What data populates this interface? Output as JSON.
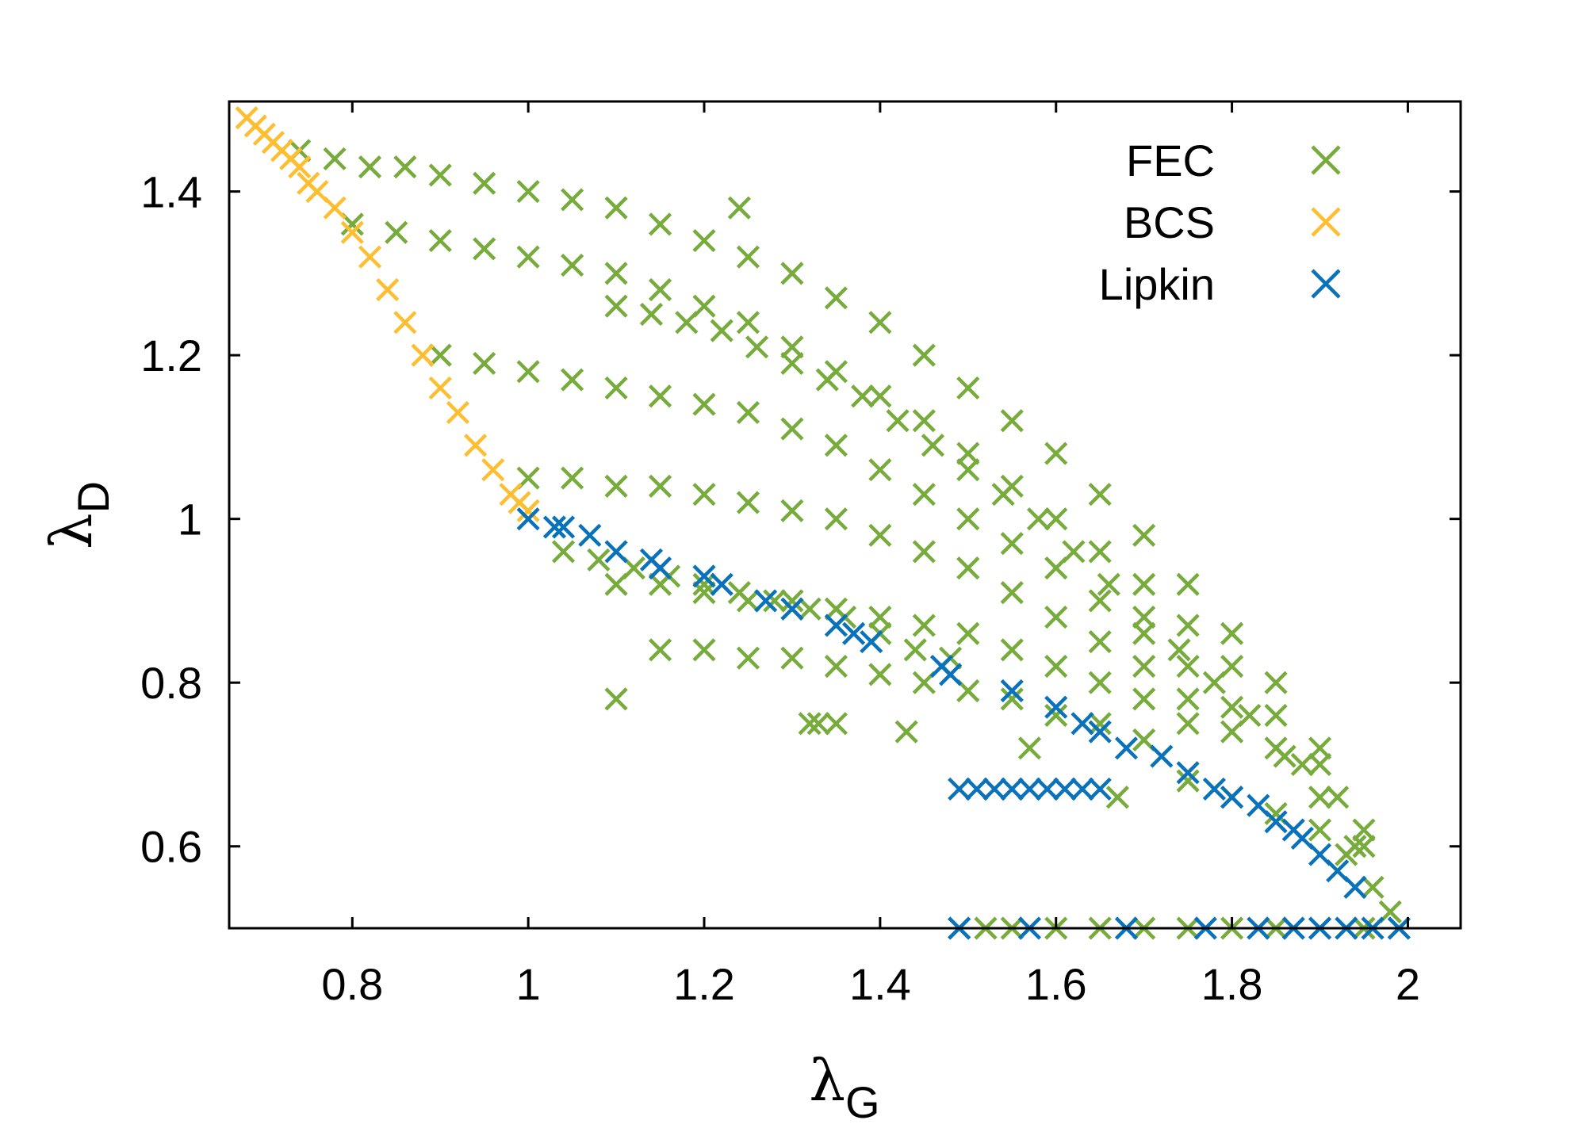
{
  "chart_data": {
    "type": "scatter",
    "title": "",
    "xlabel": {
      "symbol": "λ",
      "subscript": "G"
    },
    "ylabel": {
      "symbol": "λ",
      "subscript": "D"
    },
    "xlim": [
      0.66,
      2.06
    ],
    "ylim": [
      0.5,
      1.51
    ],
    "xticks": [
      0.8,
      1,
      1.2,
      1.4,
      1.6,
      1.8,
      2
    ],
    "xtick_labels": [
      "0.8",
      "1",
      "1.2",
      "1.4",
      "1.6",
      "1.8",
      "2"
    ],
    "yticks": [
      0.6,
      0.8,
      1,
      1.2,
      1.4
    ],
    "ytick_labels": [
      "0.6",
      "0.8",
      "1",
      "1.2",
      "1.4"
    ],
    "grid": false,
    "legend_position": "top-right",
    "marker": "x",
    "series": [
      {
        "name": "FEC",
        "color": "#77ac3c",
        "x": [
          0.74,
          0.78,
          0.82,
          0.86,
          0.9,
          0.95,
          1.0,
          1.05,
          1.1,
          1.15,
          1.2,
          1.25,
          1.3,
          1.35,
          1.4,
          1.45,
          1.5,
          1.55,
          1.6,
          1.65,
          1.7,
          1.75,
          1.8,
          1.85,
          1.9,
          1.95,
          0.8,
          0.85,
          0.9,
          0.95,
          1.0,
          1.05,
          1.1,
          1.15,
          1.2,
          1.25,
          1.3,
          1.35,
          1.4,
          1.45,
          1.5,
          1.55,
          1.6,
          1.65,
          1.7,
          1.75,
          1.8,
          1.85,
          1.9,
          0.9,
          0.95,
          1.0,
          1.05,
          1.1,
          1.15,
          1.2,
          1.25,
          1.3,
          1.35,
          1.4,
          1.45,
          1.5,
          1.55,
          1.6,
          1.65,
          1.7,
          1.75,
          1.8,
          1.85,
          1.0,
          1.05,
          1.1,
          1.15,
          1.2,
          1.25,
          1.3,
          1.35,
          1.4,
          1.45,
          1.5,
          1.55,
          1.6,
          1.65,
          1.7,
          1.75,
          1.8,
          1.1,
          1.15,
          1.2,
          1.25,
          1.3,
          1.35,
          1.4,
          1.45,
          1.5,
          1.55,
          1.6,
          1.65,
          1.7,
          1.75,
          1.15,
          1.2,
          1.25,
          1.3,
          1.35,
          1.4,
          1.45,
          1.5,
          1.55,
          1.6,
          1.65,
          1.7,
          1.04,
          1.08,
          1.12,
          1.16,
          1.2,
          1.24,
          1.28,
          1.32,
          1.36,
          1.4,
          1.44,
          1.48,
          1.1,
          1.14,
          1.18,
          1.22,
          1.26,
          1.3,
          1.34,
          1.38,
          1.42,
          1.46,
          1.5,
          1.54,
          1.58,
          1.62,
          1.66,
          1.7,
          1.74,
          1.78,
          1.82,
          1.86,
          1.9,
          1.94,
          1.24,
          1.32,
          1.33,
          1.35,
          1.43,
          1.57,
          1.67,
          1.1,
          1.49,
          1.52,
          1.55,
          1.6,
          1.65,
          1.7,
          1.75,
          1.8,
          1.85,
          1.9,
          1.95,
          1.99,
          1.75,
          1.8,
          1.85,
          1.9,
          1.93,
          1.96,
          1.98,
          1.88,
          1.92,
          1.95
        ],
        "y": [
          1.45,
          1.44,
          1.43,
          1.43,
          1.42,
          1.41,
          1.4,
          1.39,
          1.38,
          1.36,
          1.34,
          1.32,
          1.3,
          1.27,
          1.24,
          1.2,
          1.16,
          1.12,
          1.08,
          1.03,
          0.98,
          0.92,
          0.86,
          0.8,
          0.72,
          0.62,
          1.36,
          1.35,
          1.34,
          1.33,
          1.32,
          1.31,
          1.3,
          1.28,
          1.26,
          1.24,
          1.21,
          1.18,
          1.15,
          1.12,
          1.08,
          1.04,
          1.0,
          0.96,
          0.92,
          0.87,
          0.82,
          0.76,
          0.7,
          1.2,
          1.19,
          1.18,
          1.17,
          1.16,
          1.15,
          1.14,
          1.13,
          1.11,
          1.09,
          1.06,
          1.03,
          1.0,
          0.97,
          0.94,
          0.9,
          0.86,
          0.82,
          0.77,
          0.72,
          1.05,
          1.05,
          1.04,
          1.04,
          1.03,
          1.02,
          1.01,
          1.0,
          0.98,
          0.96,
          0.94,
          0.91,
          0.88,
          0.85,
          0.82,
          0.78,
          0.74,
          0.92,
          0.92,
          0.91,
          0.9,
          0.9,
          0.89,
          0.88,
          0.87,
          0.86,
          0.84,
          0.82,
          0.8,
          0.78,
          0.75,
          0.84,
          0.84,
          0.83,
          0.83,
          0.82,
          0.81,
          0.8,
          0.79,
          0.78,
          0.76,
          0.75,
          0.73,
          0.96,
          0.95,
          0.94,
          0.93,
          0.92,
          0.91,
          0.9,
          0.89,
          0.88,
          0.86,
          0.84,
          0.83,
          1.26,
          1.25,
          1.24,
          1.23,
          1.21,
          1.19,
          1.17,
          1.15,
          1.12,
          1.09,
          1.06,
          1.03,
          1.0,
          0.96,
          0.92,
          0.88,
          0.84,
          0.8,
          0.76,
          0.71,
          0.66,
          0.6,
          1.38,
          0.75,
          0.75,
          0.75,
          0.74,
          0.72,
          0.66,
          0.78,
          0.5,
          0.5,
          0.5,
          0.5,
          0.5,
          0.5,
          0.5,
          0.5,
          0.5,
          0.5,
          0.5,
          0.5,
          0.68,
          0.66,
          0.64,
          0.62,
          0.59,
          0.55,
          0.52,
          0.7,
          0.66,
          0.6
        ]
      },
      {
        "name": "BCS",
        "color": "#fdbf31",
        "x": [
          0.68,
          0.69,
          0.7,
          0.71,
          0.72,
          0.73,
          0.74,
          0.75,
          0.76,
          0.78,
          0.8,
          0.82,
          0.84,
          0.86,
          0.88,
          0.9,
          0.92,
          0.94,
          0.96,
          0.98,
          0.99,
          1.0
        ],
        "y": [
          1.49,
          1.48,
          1.47,
          1.46,
          1.45,
          1.44,
          1.43,
          1.41,
          1.4,
          1.38,
          1.35,
          1.32,
          1.28,
          1.24,
          1.2,
          1.16,
          1.13,
          1.09,
          1.06,
          1.03,
          1.02,
          1.01
        ]
      },
      {
        "name": "Lipkin",
        "color": "#0a72ba",
        "x": [
          1.0,
          1.03,
          1.04,
          1.07,
          1.1,
          1.14,
          1.15,
          1.2,
          1.22,
          1.27,
          1.3,
          1.35,
          1.37,
          1.39,
          1.47,
          1.48,
          1.55,
          1.6,
          1.63,
          1.65,
          1.68,
          1.72,
          1.75,
          1.78,
          1.8,
          1.83,
          1.85,
          1.87,
          1.88,
          1.9,
          1.92,
          1.94,
          1.49,
          1.51,
          1.53,
          1.55,
          1.57,
          1.59,
          1.61,
          1.63,
          1.65,
          1.49,
          1.57,
          1.68,
          1.77,
          1.83,
          1.87,
          1.9,
          1.93,
          1.96,
          1.99
        ],
        "y": [
          1.0,
          0.99,
          0.99,
          0.98,
          0.96,
          0.95,
          0.94,
          0.93,
          0.92,
          0.9,
          0.89,
          0.87,
          0.86,
          0.85,
          0.82,
          0.81,
          0.79,
          0.77,
          0.75,
          0.74,
          0.72,
          0.71,
          0.69,
          0.67,
          0.66,
          0.65,
          0.63,
          0.62,
          0.61,
          0.59,
          0.57,
          0.55,
          0.67,
          0.67,
          0.67,
          0.67,
          0.67,
          0.67,
          0.67,
          0.67,
          0.67,
          0.5,
          0.5,
          0.5,
          0.5,
          0.5,
          0.5,
          0.5,
          0.5,
          0.5,
          0.5
        ]
      }
    ]
  }
}
